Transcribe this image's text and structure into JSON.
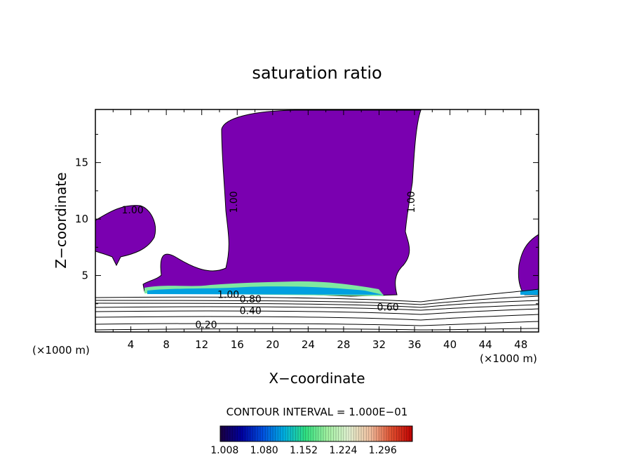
{
  "chart_data": {
    "type": "contour",
    "title": "saturation ratio",
    "xlabel": "X−coordinate",
    "ylabel": "Z−coordinate",
    "x_unit_left": "(×1000 m)",
    "x_unit_right": "(×1000 m)",
    "xlim": [
      0,
      50
    ],
    "ylim": [
      0,
      19.7
    ],
    "x_ticks": [
      4,
      8,
      12,
      16,
      20,
      24,
      28,
      32,
      36,
      40,
      44,
      48
    ],
    "y_ticks": [
      5,
      10,
      15
    ],
    "contour_interval_text": "CONTOUR INTERVAL = 1.000E−01",
    "contour_labels": [
      {
        "text": "1.00",
        "x": 4.2,
        "z": 10.5,
        "rotate": 0
      },
      {
        "text": "1.00",
        "x": 16.0,
        "z": 11.5,
        "rotate": -90
      },
      {
        "text": "1.00",
        "x": 36.0,
        "z": 11.5,
        "rotate": -90
      },
      {
        "text": "1.00",
        "x": 15.0,
        "z": 3.0,
        "rotate": 0
      },
      {
        "text": "0.80",
        "x": 17.5,
        "z": 2.6,
        "rotate": 0
      },
      {
        "text": "0.40",
        "x": 17.5,
        "z": 1.6,
        "rotate": 0
      },
      {
        "text": "0.60",
        "x": 33.0,
        "z": 1.9,
        "rotate": 0
      },
      {
        "text": "0.20",
        "x": 12.5,
        "z": 0.35,
        "rotate": 0
      }
    ],
    "colorbar": {
      "min": 1.0,
      "max": 1.35,
      "tick_labels": [
        "1.008",
        "1.080",
        "1.152",
        "1.224",
        "1.296"
      ],
      "colors": [
        "#1a0040",
        "#0000a0",
        "#0050e0",
        "#00b0e0",
        "#30e080",
        "#a0f0a0",
        "#e0f0d0",
        "#f0c0a0",
        "#e05030",
        "#c00000"
      ]
    },
    "fill_color": "#7a00b0"
  }
}
